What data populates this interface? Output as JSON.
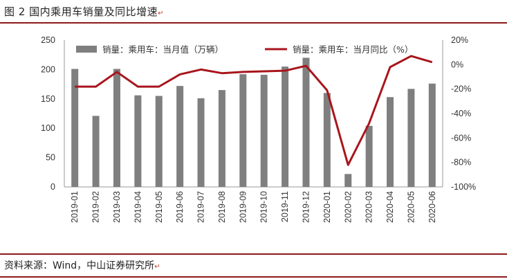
{
  "figure": {
    "title": "图 2  国内乘用车销量及同比增速",
    "source": "资料来源：Wind，中山证券研究所"
  },
  "chart_data": {
    "type": "bar",
    "categories": [
      "2019-01",
      "2019-02",
      "2019-03",
      "2019-04",
      "2019-05",
      "2019-06",
      "2019-07",
      "2019-08",
      "2019-09",
      "2019-10",
      "2019-11",
      "2019-12",
      "2020-01",
      "2020-02",
      "2020-03",
      "2020-04",
      "2020-05",
      "2020-06"
    ],
    "series": [
      {
        "name": "销量：乘用车：当月值（万辆）",
        "type": "bar",
        "axis": "left",
        "color": "#7f7f7f",
        "values": [
          201,
          121,
          201,
          156,
          155,
          172,
          151,
          165,
          192,
          191,
          205,
          220,
          160,
          22,
          104,
          153,
          167,
          176
        ]
      },
      {
        "name": "销量：乘用车：当月同比（%）",
        "type": "line",
        "axis": "right",
        "color": "#a8151c",
        "values": [
          -18,
          -18,
          -6,
          -18,
          -18,
          -8,
          -4,
          -7,
          -6,
          -5.5,
          -5,
          -1,
          -21,
          -82,
          -48,
          -2,
          7,
          2
        ]
      }
    ],
    "y_left": {
      "min": 0,
      "max": 250,
      "ticks": [
        "0",
        "50",
        "100",
        "150",
        "200",
        "250"
      ]
    },
    "y_right": {
      "min": -100,
      "max": 20,
      "ticks": [
        "-100%",
        "-80%",
        "-60%",
        "-40%",
        "-20%",
        "0%",
        "20%"
      ]
    },
    "legend_position": "top",
    "grid": false
  }
}
